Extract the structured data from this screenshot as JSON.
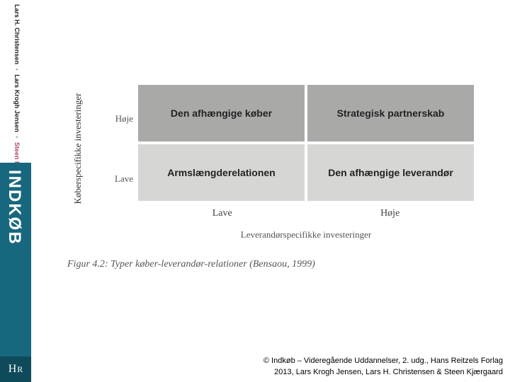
{
  "sidebar": {
    "authors_part1": "Lars H. Christensen",
    "authors_part2": "Lars Krogh Jensen",
    "authors_part3": "Steen Kjærgaard",
    "title": "INDKØB",
    "logo_a": "H",
    "logo_b": "R"
  },
  "figure": {
    "type": "2x2-matrix",
    "y_axis_label": "Køberspecifikke investeringer",
    "x_axis_label": "Leverandørspecifikke investeringer",
    "y_ticks": {
      "high": "Høje",
      "low": "Lave"
    },
    "x_ticks": {
      "low": "Lave",
      "high": "Høje"
    },
    "cells": {
      "top_left": "Den afhængige køber",
      "top_right": "Strategisk partnerskab",
      "bot_left": "Armslængderelationen",
      "bot_right": "Den afhængige leverandør"
    },
    "colors": {
      "dark_cell": "#a9aaa8",
      "light_cell": "#d6d6d4",
      "bg": "#ffffff"
    },
    "caption": "Figur 4.2: Typer køber-leverandør-relationer (Bensaou, 1999)"
  },
  "credit": {
    "line1": "© Indkøb – Videregående Uddannelser, 2. udg., Hans Reitzels Forlag",
    "line2": "2013, Lars Krogh Jensen, Lars H. Christensen & Steen Kjærgaard"
  }
}
